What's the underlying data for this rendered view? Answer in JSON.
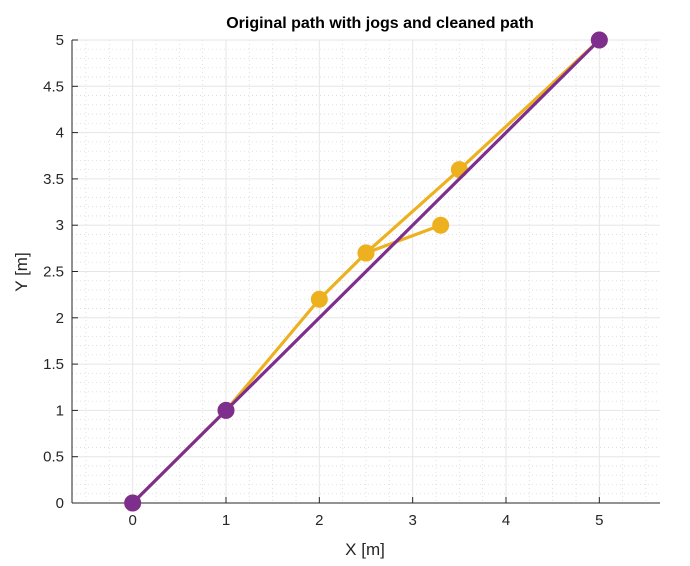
{
  "chart_data": {
    "type": "line",
    "title": "Original path with jogs and cleaned path",
    "xlabel": "X [m]",
    "ylabel": "Y [m]",
    "xlim": [
      -0.65,
      5.65
    ],
    "ylim": [
      0,
      5
    ],
    "xticks": [
      0,
      1,
      2,
      3,
      4,
      5
    ],
    "xtick_labels": [
      "0",
      "1",
      "2",
      "3",
      "4",
      "5"
    ],
    "yticks": [
      0,
      0.5,
      1,
      1.5,
      2,
      2.5,
      3,
      3.5,
      4,
      4.5,
      5
    ],
    "ytick_labels": [
      "0",
      "0.5",
      "1",
      "1.5",
      "2",
      "2.5",
      "3",
      "3.5",
      "4",
      "4.5",
      "5"
    ],
    "grid": true,
    "minor_grid": true,
    "series": [
      {
        "color": "#EDB120",
        "x": [
          0,
          1,
          2,
          2.5,
          3.3,
          2.5,
          3.5,
          5
        ],
        "y": [
          0,
          1,
          2.2,
          2.7,
          3.0,
          2.7,
          3.6,
          5
        ]
      },
      {
        "color": "#7E2F8E",
        "x": [
          0,
          1,
          5
        ],
        "y": [
          0,
          1,
          5
        ]
      }
    ]
  }
}
